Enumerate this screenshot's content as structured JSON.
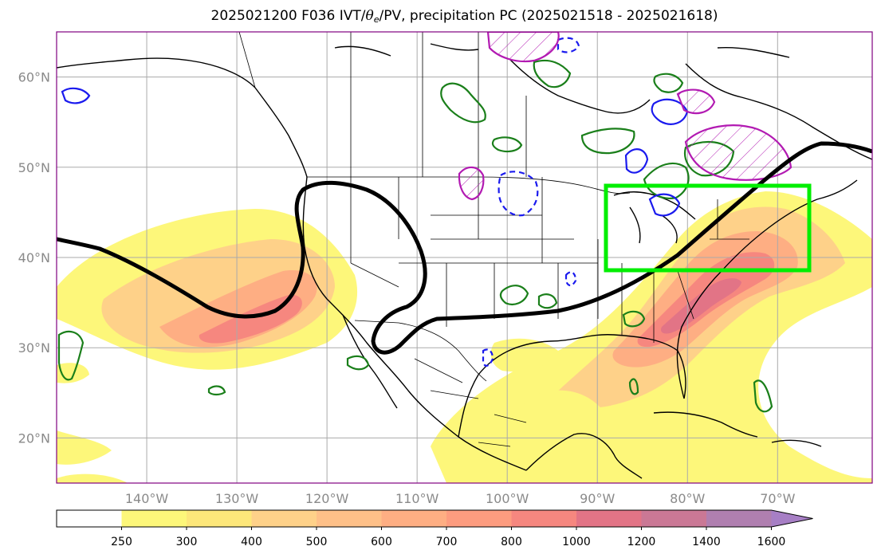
{
  "title": {
    "prefix": "2025021200 F036 IVT/",
    "theta": "θ",
    "theta_sub": "e",
    "suffix": "/PV, precipitation PC (2025021518 - 2025021618)"
  },
  "axes": {
    "lat_labels": [
      "60°N",
      "50°N",
      "40°N",
      "30°N",
      "20°N"
    ],
    "lat_values": [
      60,
      50,
      40,
      30,
      20
    ],
    "lon_labels": [
      "140°W",
      "130°W",
      "120°W",
      "110°W",
      "100°W",
      "90°W",
      "80°W",
      "70°W"
    ],
    "lon_values": [
      -140,
      -130,
      -120,
      -110,
      -100,
      -90,
      -80,
      -70
    ],
    "extent": {
      "lon_min": -150,
      "lon_max": -59.5,
      "lat_min": 15,
      "lat_max": 65
    }
  },
  "colorbar": {
    "levels": [
      "250",
      "300",
      "400",
      "500",
      "600",
      "700",
      "800",
      "1000",
      "1200",
      "1400",
      "1600"
    ],
    "colors": [
      "#ffffff",
      "#fdf77a",
      "#fde77a",
      "#fed189",
      "#fec088",
      "#feae83",
      "#fd9c7f",
      "#f6877f",
      "#e27486",
      "#ca7895",
      "#b07fb0",
      "#a77fc5"
    ]
  },
  "colors": {
    "jet_line": "#000000",
    "highlight_box": "#00ee00",
    "theta_e_contour": "#1a7f1a",
    "pv_contour_solid": "#1a1aee",
    "precip_contour": "#b21ab2"
  }
}
